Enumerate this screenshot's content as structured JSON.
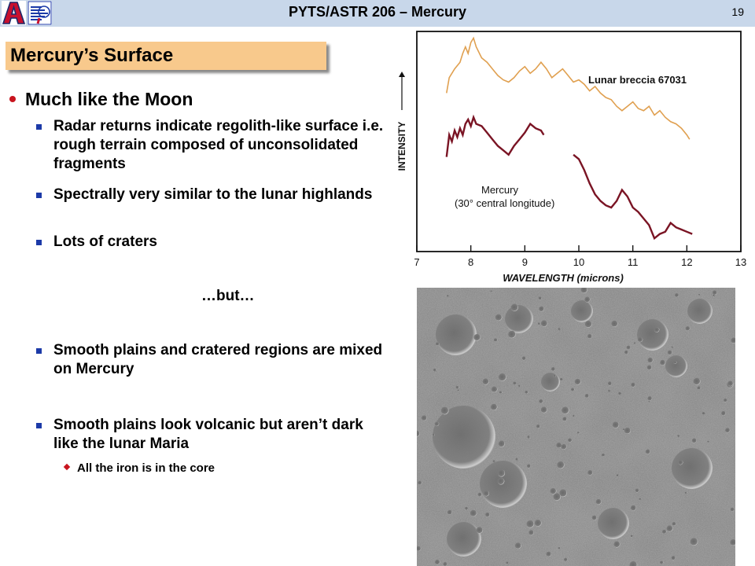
{
  "header": {
    "title": "PYTS/ASTR 206 – Mercury",
    "page_number": "19",
    "header_color": "#c8d7ea"
  },
  "slide": {
    "section_title": "Mercury’s Surface",
    "main_bullet": "Much like the Moon",
    "sub_bullets": [
      "Radar returns indicate regolith-like surface i.e. rough terrain composed of unconsolidated fragments",
      "Spectrally very similar to the lunar highlands",
      "Lots of craters",
      "Smooth plains and cratered regions are mixed on Mercury",
      "Smooth plains look volcanic but aren’t dark like the lunar Maria"
    ],
    "separator": "…but…",
    "sub_sub_bullet": "All the iron is in the core"
  },
  "chart_data": {
    "type": "line",
    "xlabel": "WAVELENGTH (microns)",
    "ylabel": "INTENSITY",
    "x_ticks": [
      "7",
      "8",
      "9",
      "10",
      "11",
      "12",
      "13"
    ],
    "xlim": [
      7,
      13
    ],
    "ylim": [
      0,
      10
    ],
    "grid": false,
    "series": [
      {
        "name": "Lunar breccia 67031",
        "color": "#e0a050",
        "x": [
          7.55,
          7.6,
          7.7,
          7.8,
          7.85,
          7.9,
          7.95,
          8.0,
          8.05,
          8.1,
          8.2,
          8.3,
          8.4,
          8.5,
          8.6,
          8.7,
          8.8,
          8.9,
          9.0,
          9.1,
          9.2,
          9.3,
          9.4,
          9.5,
          9.6,
          9.7,
          9.8,
          9.9,
          10.0,
          10.1,
          10.2,
          10.3,
          10.4,
          10.5,
          10.6,
          10.7,
          10.8,
          10.9,
          11.0,
          11.1,
          11.2,
          11.3,
          11.4,
          11.5,
          11.6,
          11.7,
          11.8,
          11.9,
          12.0,
          12.05
        ],
        "y": [
          7.2,
          7.9,
          8.3,
          8.6,
          9.0,
          9.3,
          9.0,
          9.5,
          9.7,
          9.3,
          8.8,
          8.6,
          8.3,
          8.0,
          7.8,
          7.7,
          7.9,
          8.2,
          8.4,
          8.1,
          8.3,
          8.6,
          8.3,
          7.9,
          8.1,
          8.3,
          8.0,
          7.7,
          7.8,
          7.6,
          7.3,
          7.5,
          7.2,
          7.0,
          6.9,
          6.6,
          6.4,
          6.6,
          6.8,
          6.5,
          6.4,
          6.6,
          6.2,
          6.4,
          6.1,
          5.9,
          5.8,
          5.6,
          5.3,
          5.1
        ]
      },
      {
        "name": "Mercury (30° central longitude)",
        "color": "#7a1424",
        "x": [
          7.55,
          7.6,
          7.65,
          7.7,
          7.75,
          7.8,
          7.85,
          7.9,
          7.95,
          8.0,
          8.05,
          8.1,
          8.2,
          8.3,
          8.4,
          8.5,
          8.6,
          8.7,
          8.8,
          8.9,
          9.0,
          9.1,
          9.2,
          9.3,
          9.35
        ],
        "y": [
          4.3,
          5.3,
          5.0,
          5.5,
          5.2,
          5.6,
          5.3,
          5.8,
          6.0,
          5.7,
          6.1,
          5.8,
          5.7,
          5.4,
          5.1,
          4.8,
          4.6,
          4.4,
          4.8,
          5.1,
          5.4,
          5.8,
          5.6,
          5.5,
          5.3
        ],
        "x2": [
          9.9,
          10.0,
          10.1,
          10.2,
          10.3,
          10.4,
          10.5,
          10.6,
          10.7,
          10.8,
          10.9,
          11.0,
          11.1,
          11.2,
          11.3,
          11.4,
          11.5,
          11.6,
          11.7,
          11.8,
          11.9,
          12.0,
          12.1
        ],
        "y2": [
          4.4,
          4.2,
          3.7,
          3.1,
          2.6,
          2.3,
          2.1,
          2.0,
          2.3,
          2.8,
          2.5,
          2.0,
          1.8,
          1.5,
          1.2,
          0.6,
          0.8,
          0.9,
          1.3,
          1.1,
          1.0,
          0.9,
          0.8
        ]
      }
    ],
    "annotations": [
      "Lunar breccia 67031",
      "Mercury",
      "(30° central longitude)"
    ]
  }
}
